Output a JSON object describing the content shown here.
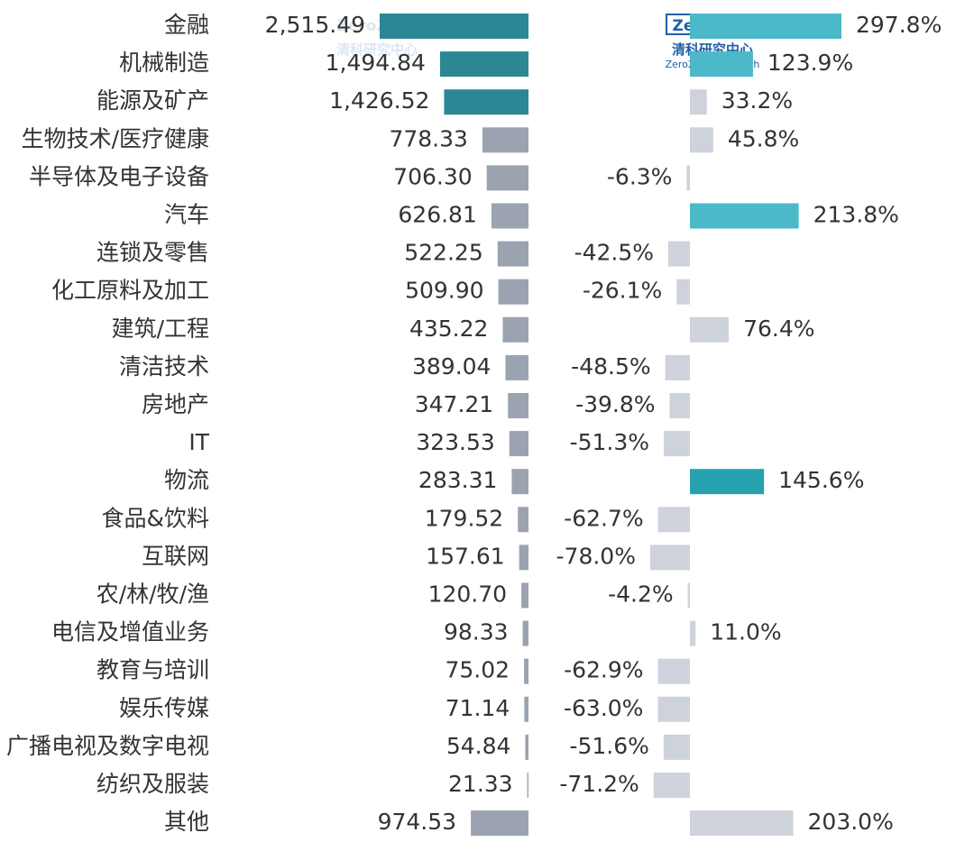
{
  "chart_data": {
    "type": "bar",
    "orientation": "horizontal",
    "categories": [
      "金融",
      "机械制造",
      "能源及矿产",
      "生物技术/医疗健康",
      "半导体及电子设备",
      "汽车",
      "连锁及零售",
      "化工原料及加工",
      "建筑/工程",
      "清洁技术",
      "房地产",
      "IT",
      "物流",
      "食品&饮料",
      "互联网",
      "农/林/牧/渔",
      "电信及增值业务",
      "教育与培训",
      "娱乐传媒",
      "广播电视及数字电视",
      "纺织及服装",
      "其他"
    ],
    "series": [
      {
        "values": [
          2515.49,
          1494.84,
          1426.52,
          778.33,
          706.3,
          626.81,
          522.25,
          509.9,
          435.22,
          389.04,
          347.21,
          323.53,
          283.31,
          179.52,
          157.61,
          120.7,
          98.33,
          75.02,
          71.14,
          54.84,
          21.33,
          974.53
        ],
        "value_labels": [
          "2,515.49",
          "1,494.84",
          "1,426.52",
          "778.33",
          "706.30",
          "626.81",
          "522.25",
          "509.90",
          "435.22",
          "389.04",
          "347.21",
          "323.53",
          "283.31",
          "179.52",
          "157.61",
          "120.70",
          "98.33",
          "75.02",
          "71.14",
          "54.84",
          "21.33",
          "974.53"
        ],
        "colors": [
          "#2b8793",
          "#2b8793",
          "#2b8793",
          "#9ba3b1",
          "#9ba3b1",
          "#9ba3b1",
          "#9ba3b1",
          "#9ba3b1",
          "#9ba3b1",
          "#9ba3b1",
          "#9ba3b1",
          "#9ba3b1",
          "#9ba3b1",
          "#9ba3b1",
          "#9ba3b1",
          "#9ba3b1",
          "#9ba3b1",
          "#9ba3b1",
          "#9ba3b1",
          "#9ba3b1",
          "#9ba3b1",
          "#9ba3b1"
        ]
      },
      {
        "values": [
          297.8,
          123.9,
          33.2,
          45.8,
          -6.3,
          213.8,
          -42.5,
          -26.1,
          76.4,
          -48.5,
          -39.8,
          -51.3,
          145.6,
          -62.7,
          -78.0,
          -4.2,
          11.0,
          -62.9,
          -63.0,
          -51.6,
          -71.2,
          203.0
        ],
        "value_labels": [
          "297.8%",
          "123.9%",
          "33.2%",
          "45.8%",
          "-6.3%",
          "213.8%",
          "-42.5%",
          "-26.1%",
          "76.4%",
          "-48.5%",
          "-39.8%",
          "-51.3%",
          "145.6%",
          "-62.7%",
          "-78.0%",
          "-4.2%",
          "11.0%",
          "-62.9%",
          "-63.0%",
          "-51.6%",
          "-71.2%",
          "203.0%"
        ],
        "colors": [
          "#4bb9c8",
          "#4bb9c8",
          "#cdd2db",
          "#cdd2db",
          "#cdd2db",
          "#4bb9c8",
          "#cdd2db",
          "#cdd2db",
          "#cdd2db",
          "#cdd2db",
          "#cdd2db",
          "#cdd2db",
          "#26a2af",
          "#cdd2db",
          "#cdd2db",
          "#cdd2db",
          "#cdd2db",
          "#cdd2db",
          "#cdd2db",
          "#cdd2db",
          "#cdd2db",
          "#cdd2db"
        ]
      }
    ],
    "watermark": {
      "brand": "Zero2IPO",
      "name": "清科研究中心",
      "english": "Zero2IPO Research"
    }
  }
}
